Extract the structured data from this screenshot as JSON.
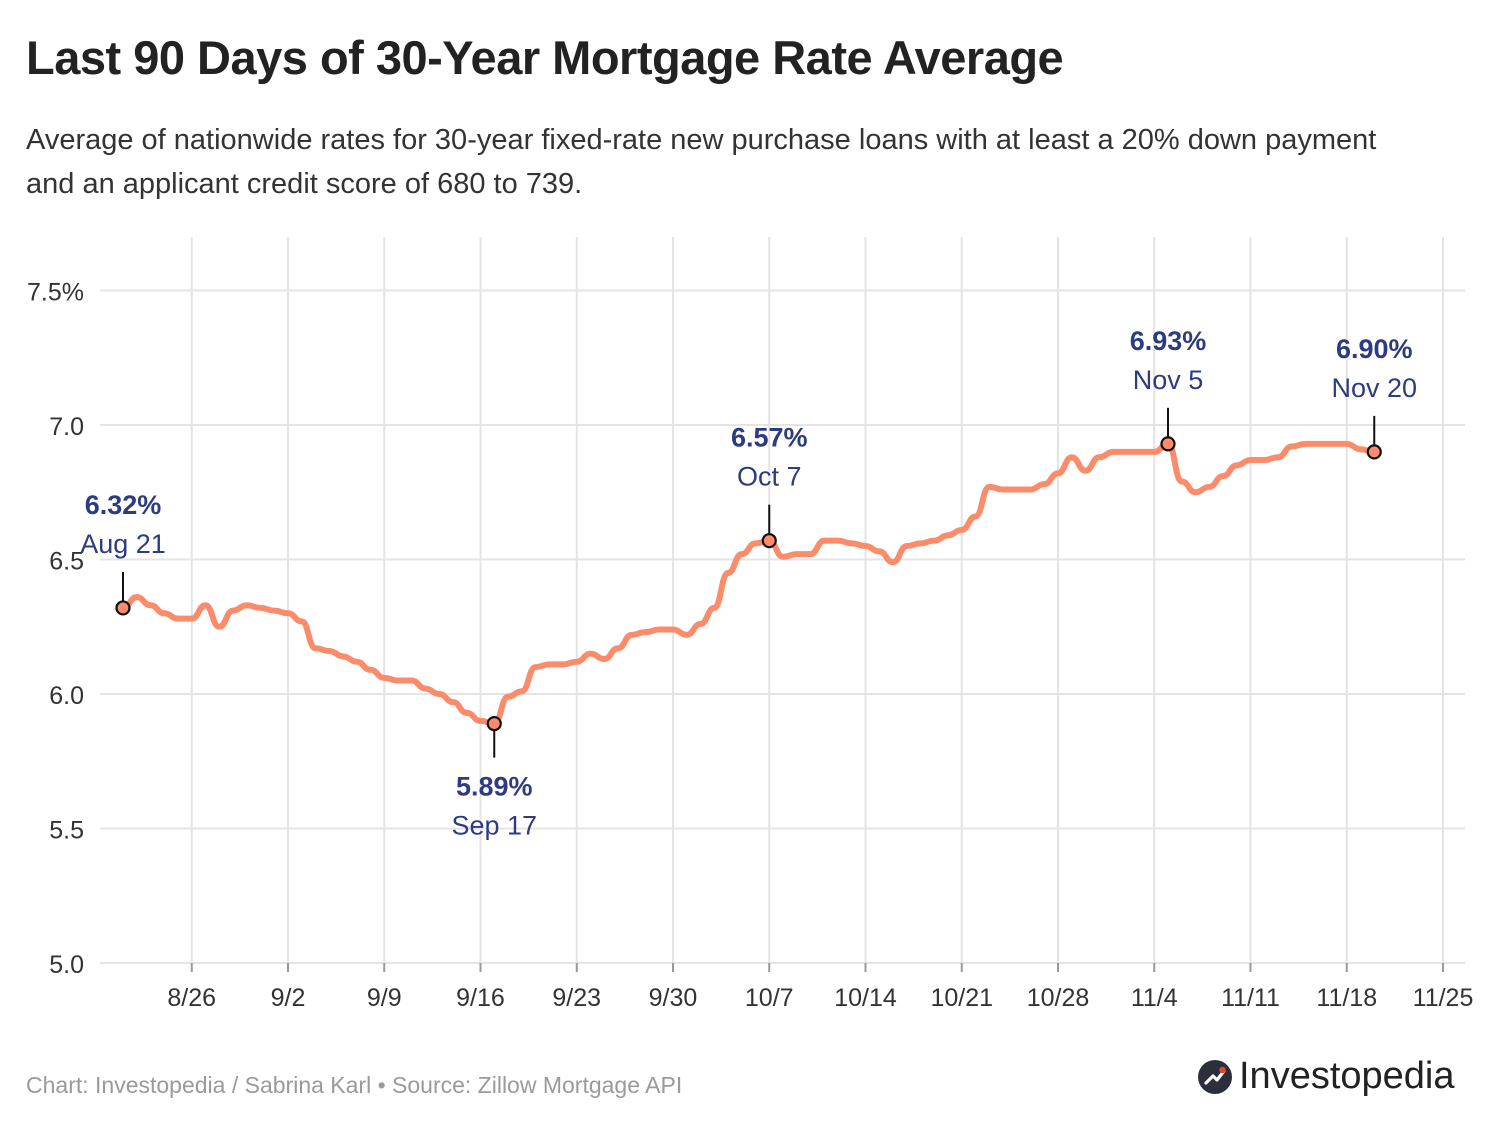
{
  "header": {
    "title": "Last 90 Days of 30-Year Mortgage Rate Average",
    "subtitle": "Average of nationwide rates for 30-year fixed-rate new purchase loans with at least a 20% down payment and an applicant credit score of 680 to 739."
  },
  "footer": {
    "source": "Chart: Investopedia / Sabrina Karl • Source: Zillow Mortgage API",
    "brand": "Investopedia"
  },
  "colors": {
    "line": "#fb8c6b",
    "annotation": "#2d3b80",
    "grid": "#e4e4e4",
    "axis_text": "#333333"
  },
  "chart_data": {
    "type": "line",
    "title": "Last 90 Days of 30-Year Mortgage Rate Average",
    "xlabel": "",
    "ylabel": "",
    "x_start": "2024-08-21",
    "ylim": [
      5.0,
      7.5
    ],
    "yticks": [
      5.0,
      5.5,
      6.0,
      6.5,
      7.0,
      7.5
    ],
    "ytick_labels": [
      "5.0",
      "5.5",
      "6.0",
      "6.5",
      "7.0",
      "7.5%"
    ],
    "xticks": [
      {
        "date": "2024-08-26",
        "label": "8/26"
      },
      {
        "date": "2024-09-02",
        "label": "9/2"
      },
      {
        "date": "2024-09-09",
        "label": "9/9"
      },
      {
        "date": "2024-09-16",
        "label": "9/16"
      },
      {
        "date": "2024-09-23",
        "label": "9/23"
      },
      {
        "date": "2024-09-30",
        "label": "9/30"
      },
      {
        "date": "2024-10-07",
        "label": "10/7"
      },
      {
        "date": "2024-10-14",
        "label": "10/14"
      },
      {
        "date": "2024-10-21",
        "label": "10/21"
      },
      {
        "date": "2024-10-28",
        "label": "10/28"
      },
      {
        "date": "2024-11-04",
        "label": "11/4"
      },
      {
        "date": "2024-11-11",
        "label": "11/11"
      },
      {
        "date": "2024-11-18",
        "label": "11/18"
      },
      {
        "date": "2024-11-25",
        "label": "11/25"
      }
    ],
    "grid": true,
    "series": [
      {
        "name": "",
        "color": "#fb8c6b",
        "points": [
          [
            "2024-08-21",
            6.32
          ],
          [
            "2024-08-22",
            6.36
          ],
          [
            "2024-08-23",
            6.33
          ],
          [
            "2024-08-24",
            6.3
          ],
          [
            "2024-08-25",
            6.28
          ],
          [
            "2024-08-26",
            6.28
          ],
          [
            "2024-08-27",
            6.33
          ],
          [
            "2024-08-28",
            6.25
          ],
          [
            "2024-08-29",
            6.31
          ],
          [
            "2024-08-30",
            6.33
          ],
          [
            "2024-08-31",
            6.32
          ],
          [
            "2024-09-01",
            6.31
          ],
          [
            "2024-09-02",
            6.3
          ],
          [
            "2024-09-03",
            6.27
          ],
          [
            "2024-09-04",
            6.17
          ],
          [
            "2024-09-05",
            6.16
          ],
          [
            "2024-09-06",
            6.14
          ],
          [
            "2024-09-07",
            6.12
          ],
          [
            "2024-09-08",
            6.09
          ],
          [
            "2024-09-09",
            6.06
          ],
          [
            "2024-09-10",
            6.05
          ],
          [
            "2024-09-11",
            6.05
          ],
          [
            "2024-09-12",
            6.02
          ],
          [
            "2024-09-13",
            6.0
          ],
          [
            "2024-09-14",
            5.97
          ],
          [
            "2024-09-15",
            5.93
          ],
          [
            "2024-09-16",
            5.9
          ],
          [
            "2024-09-17",
            5.89
          ],
          [
            "2024-09-18",
            5.99
          ],
          [
            "2024-09-19",
            6.01
          ],
          [
            "2024-09-20",
            6.1
          ],
          [
            "2024-09-21",
            6.11
          ],
          [
            "2024-09-22",
            6.11
          ],
          [
            "2024-09-23",
            6.12
          ],
          [
            "2024-09-24",
            6.15
          ],
          [
            "2024-09-25",
            6.13
          ],
          [
            "2024-09-26",
            6.17
          ],
          [
            "2024-09-27",
            6.22
          ],
          [
            "2024-09-28",
            6.23
          ],
          [
            "2024-09-29",
            6.24
          ],
          [
            "2024-09-30",
            6.24
          ],
          [
            "2024-10-01",
            6.22
          ],
          [
            "2024-10-02",
            6.26
          ],
          [
            "2024-10-03",
            6.32
          ],
          [
            "2024-10-04",
            6.45
          ],
          [
            "2024-10-05",
            6.52
          ],
          [
            "2024-10-06",
            6.56
          ],
          [
            "2024-10-07",
            6.57
          ],
          [
            "2024-10-08",
            6.51
          ],
          [
            "2024-10-09",
            6.52
          ],
          [
            "2024-10-10",
            6.52
          ],
          [
            "2024-10-11",
            6.57
          ],
          [
            "2024-10-12",
            6.57
          ],
          [
            "2024-10-13",
            6.56
          ],
          [
            "2024-10-14",
            6.55
          ],
          [
            "2024-10-15",
            6.53
          ],
          [
            "2024-10-16",
            6.49
          ],
          [
            "2024-10-17",
            6.55
          ],
          [
            "2024-10-18",
            6.56
          ],
          [
            "2024-10-19",
            6.57
          ],
          [
            "2024-10-20",
            6.59
          ],
          [
            "2024-10-21",
            6.61
          ],
          [
            "2024-10-22",
            6.66
          ],
          [
            "2024-10-23",
            6.77
          ],
          [
            "2024-10-24",
            6.76
          ],
          [
            "2024-10-25",
            6.76
          ],
          [
            "2024-10-26",
            6.76
          ],
          [
            "2024-10-27",
            6.78
          ],
          [
            "2024-10-28",
            6.82
          ],
          [
            "2024-10-29",
            6.88
          ],
          [
            "2024-10-30",
            6.83
          ],
          [
            "2024-10-31",
            6.88
          ],
          [
            "2024-11-01",
            6.9
          ],
          [
            "2024-11-02",
            6.9
          ],
          [
            "2024-11-03",
            6.9
          ],
          [
            "2024-11-04",
            6.9
          ],
          [
            "2024-11-05",
            6.93
          ],
          [
            "2024-11-06",
            6.79
          ],
          [
            "2024-11-07",
            6.75
          ],
          [
            "2024-11-08",
            6.77
          ],
          [
            "2024-11-09",
            6.81
          ],
          [
            "2024-11-10",
            6.85
          ],
          [
            "2024-11-11",
            6.87
          ],
          [
            "2024-11-12",
            6.87
          ],
          [
            "2024-11-13",
            6.88
          ],
          [
            "2024-11-14",
            6.92
          ],
          [
            "2024-11-15",
            6.93
          ],
          [
            "2024-11-16",
            6.93
          ],
          [
            "2024-11-17",
            6.93
          ],
          [
            "2024-11-18",
            6.93
          ],
          [
            "2024-11-19",
            6.91
          ],
          [
            "2024-11-20",
            6.9
          ]
        ]
      }
    ],
    "annotations": [
      {
        "date": "2024-08-21",
        "value": 6.32,
        "value_label": "6.32%",
        "date_label": "Aug 21",
        "position": "above"
      },
      {
        "date": "2024-09-17",
        "value": 5.89,
        "value_label": "5.89%",
        "date_label": "Sep 17",
        "position": "below"
      },
      {
        "date": "2024-10-07",
        "value": 6.57,
        "value_label": "6.57%",
        "date_label": "Oct 7",
        "position": "above"
      },
      {
        "date": "2024-11-05",
        "value": 6.93,
        "value_label": "6.93%",
        "date_label": "Nov 5",
        "position": "above"
      },
      {
        "date": "2024-11-20",
        "value": 6.9,
        "value_label": "6.90%",
        "date_label": "Nov 20",
        "position": "above"
      }
    ]
  }
}
